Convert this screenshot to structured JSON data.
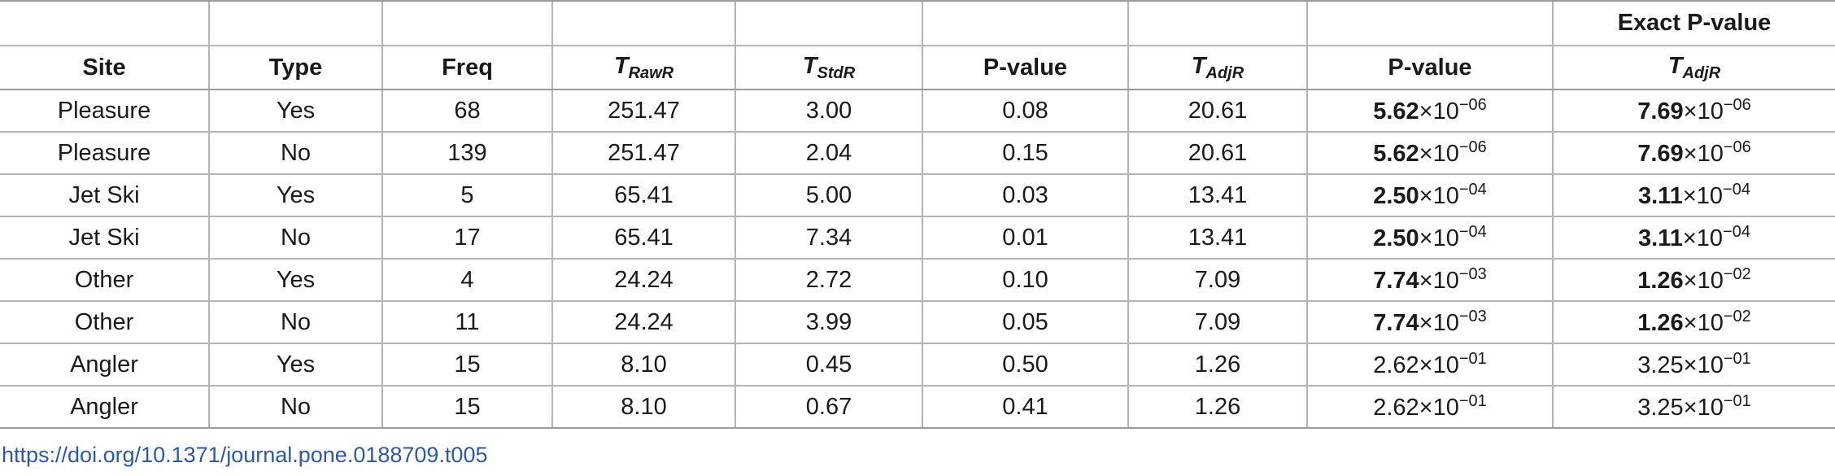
{
  "table": {
    "super_header": {
      "exact_pvalue_label": "Exact P-value"
    },
    "headers": {
      "site": "Site",
      "type": "Type",
      "freq": "Freq",
      "t_raw_base": "T",
      "t_raw_sub": "RawR",
      "t_std_base": "T",
      "t_std_sub": "StdR",
      "pvalue_1": "P-value",
      "t_adj_base": "T",
      "t_adj_sub": "AdjR",
      "pvalue_2": "P-value",
      "exact_t_adj_base": "T",
      "exact_t_adj_sub": "AdjR"
    },
    "sci_times": "×10",
    "rows": [
      {
        "site": "Pleasure",
        "type": "Yes",
        "freq": "68",
        "t_raw": "251.47",
        "t_std": "3.00",
        "pvalue": "0.08",
        "t_adj": "20.61",
        "p_mant": "5.62",
        "p_exp": "−06",
        "exact_mant": "7.69",
        "exact_exp": "−06"
      },
      {
        "site": "Pleasure",
        "type": "No",
        "freq": "139",
        "t_raw": "251.47",
        "t_std": "2.04",
        "pvalue": "0.15",
        "t_adj": "20.61",
        "p_mant": "5.62",
        "p_exp": "−06",
        "exact_mant": "7.69",
        "exact_exp": "−06"
      },
      {
        "site": "Jet Ski",
        "type": "Yes",
        "freq": "5",
        "t_raw": "65.41",
        "t_std": "5.00",
        "pvalue": "0.03",
        "t_adj": "13.41",
        "p_mant": "2.50",
        "p_exp": "−04",
        "exact_mant": "3.11",
        "exact_exp": "−04"
      },
      {
        "site": "Jet Ski",
        "type": "No",
        "freq": "17",
        "t_raw": "65.41",
        "t_std": "7.34",
        "pvalue": "0.01",
        "t_adj": "13.41",
        "p_mant": "2.50",
        "p_exp": "−04",
        "exact_mant": "3.11",
        "exact_exp": "−04"
      },
      {
        "site": "Other",
        "type": "Yes",
        "freq": "4",
        "t_raw": "24.24",
        "t_std": "2.72",
        "pvalue": "0.10",
        "t_adj": "7.09",
        "p_mant": "7.74",
        "p_exp": "−03",
        "exact_mant": "1.26",
        "exact_exp": "−02"
      },
      {
        "site": "Other",
        "type": "No",
        "freq": "11",
        "t_raw": "24.24",
        "t_std": "3.99",
        "pvalue": "0.05",
        "t_adj": "7.09",
        "p_mant": "7.74",
        "p_exp": "−03",
        "exact_mant": "1.26",
        "exact_exp": "−02"
      },
      {
        "site": "Angler",
        "type": "Yes",
        "freq": "15",
        "t_raw": "8.10",
        "t_std": "0.45",
        "pvalue": "0.50",
        "t_adj": "1.26",
        "p_mant": "2.62",
        "p_exp": "−01",
        "exact_mant": "3.25",
        "exact_exp": "−01"
      },
      {
        "site": "Angler",
        "type": "No",
        "freq": "15",
        "t_raw": "8.10",
        "t_std": "0.67",
        "pvalue": "0.41",
        "t_adj": "1.26",
        "p_mant": "2.62",
        "p_exp": "−01",
        "exact_mant": "3.25",
        "exact_exp": "−01"
      }
    ]
  },
  "doi_link": "https://doi.org/10.1371/journal.pone.0188709.t005"
}
